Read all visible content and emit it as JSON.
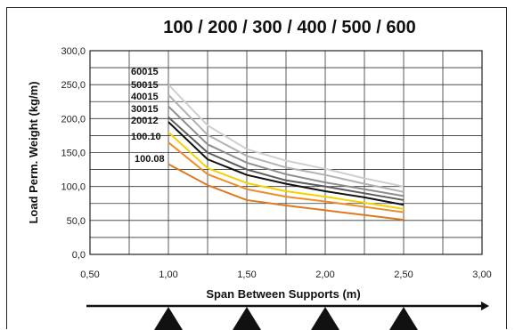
{
  "chart_data": {
    "type": "line",
    "title": "100 / 200 / 300 / 400 / 500 / 600",
    "xlabel": "Span Between Supports (m)",
    "ylabel": "Load Perm. Weight (kg/m)",
    "xlim": [
      0.5,
      3.0
    ],
    "ylim": [
      0,
      300
    ],
    "x_ticks": [
      "0,50",
      "1,00",
      "1,50",
      "2,00",
      "2,50",
      "3,00"
    ],
    "y_ticks": [
      "0,0",
      "50,0",
      "100,0",
      "150,0",
      "200,0",
      "250,0",
      "300,0"
    ],
    "grid": true,
    "legend": "inline-left",
    "x": [
      1.0,
      1.25,
      1.5,
      1.75,
      2.0,
      2.25,
      2.5
    ],
    "series": [
      {
        "name": "60015",
        "color": "#cfcfcf",
        "values": [
          250,
          190,
          155,
          138,
          126,
          112,
          100
        ]
      },
      {
        "name": "50015",
        "color": "#b2b2b2",
        "values": [
          235,
          176,
          145,
          128,
          117,
          104,
          92
        ]
      },
      {
        "name": "40015",
        "color": "#8e8e8e",
        "values": [
          218,
          162,
          135,
          118,
          106,
          96,
          86
        ]
      },
      {
        "name": "30015",
        "color": "#5c5c5c",
        "values": [
          202,
          150,
          125,
          109,
          100,
          90,
          80
        ]
      },
      {
        "name": "20012",
        "color": "#111111",
        "values": [
          195,
          140,
          117,
          104,
          93,
          84,
          73
        ]
      },
      {
        "name": "100.10",
        "color": "#f4d200",
        "values": [
          180,
          127,
          105,
          93,
          85,
          76,
          67
        ]
      },
      {
        "name": "100.08",
        "color": "#f08c28",
        "values": [
          165,
          118,
          96,
          85,
          78,
          70,
          62
        ],
        "label_hidden": true
      },
      {
        "name": "",
        "color": "#e0781e",
        "values": [
          133,
          102,
          80,
          72,
          65,
          58,
          51
        ]
      }
    ],
    "supports_x": [
      1.0,
      1.5,
      2.0,
      2.5
    ]
  }
}
